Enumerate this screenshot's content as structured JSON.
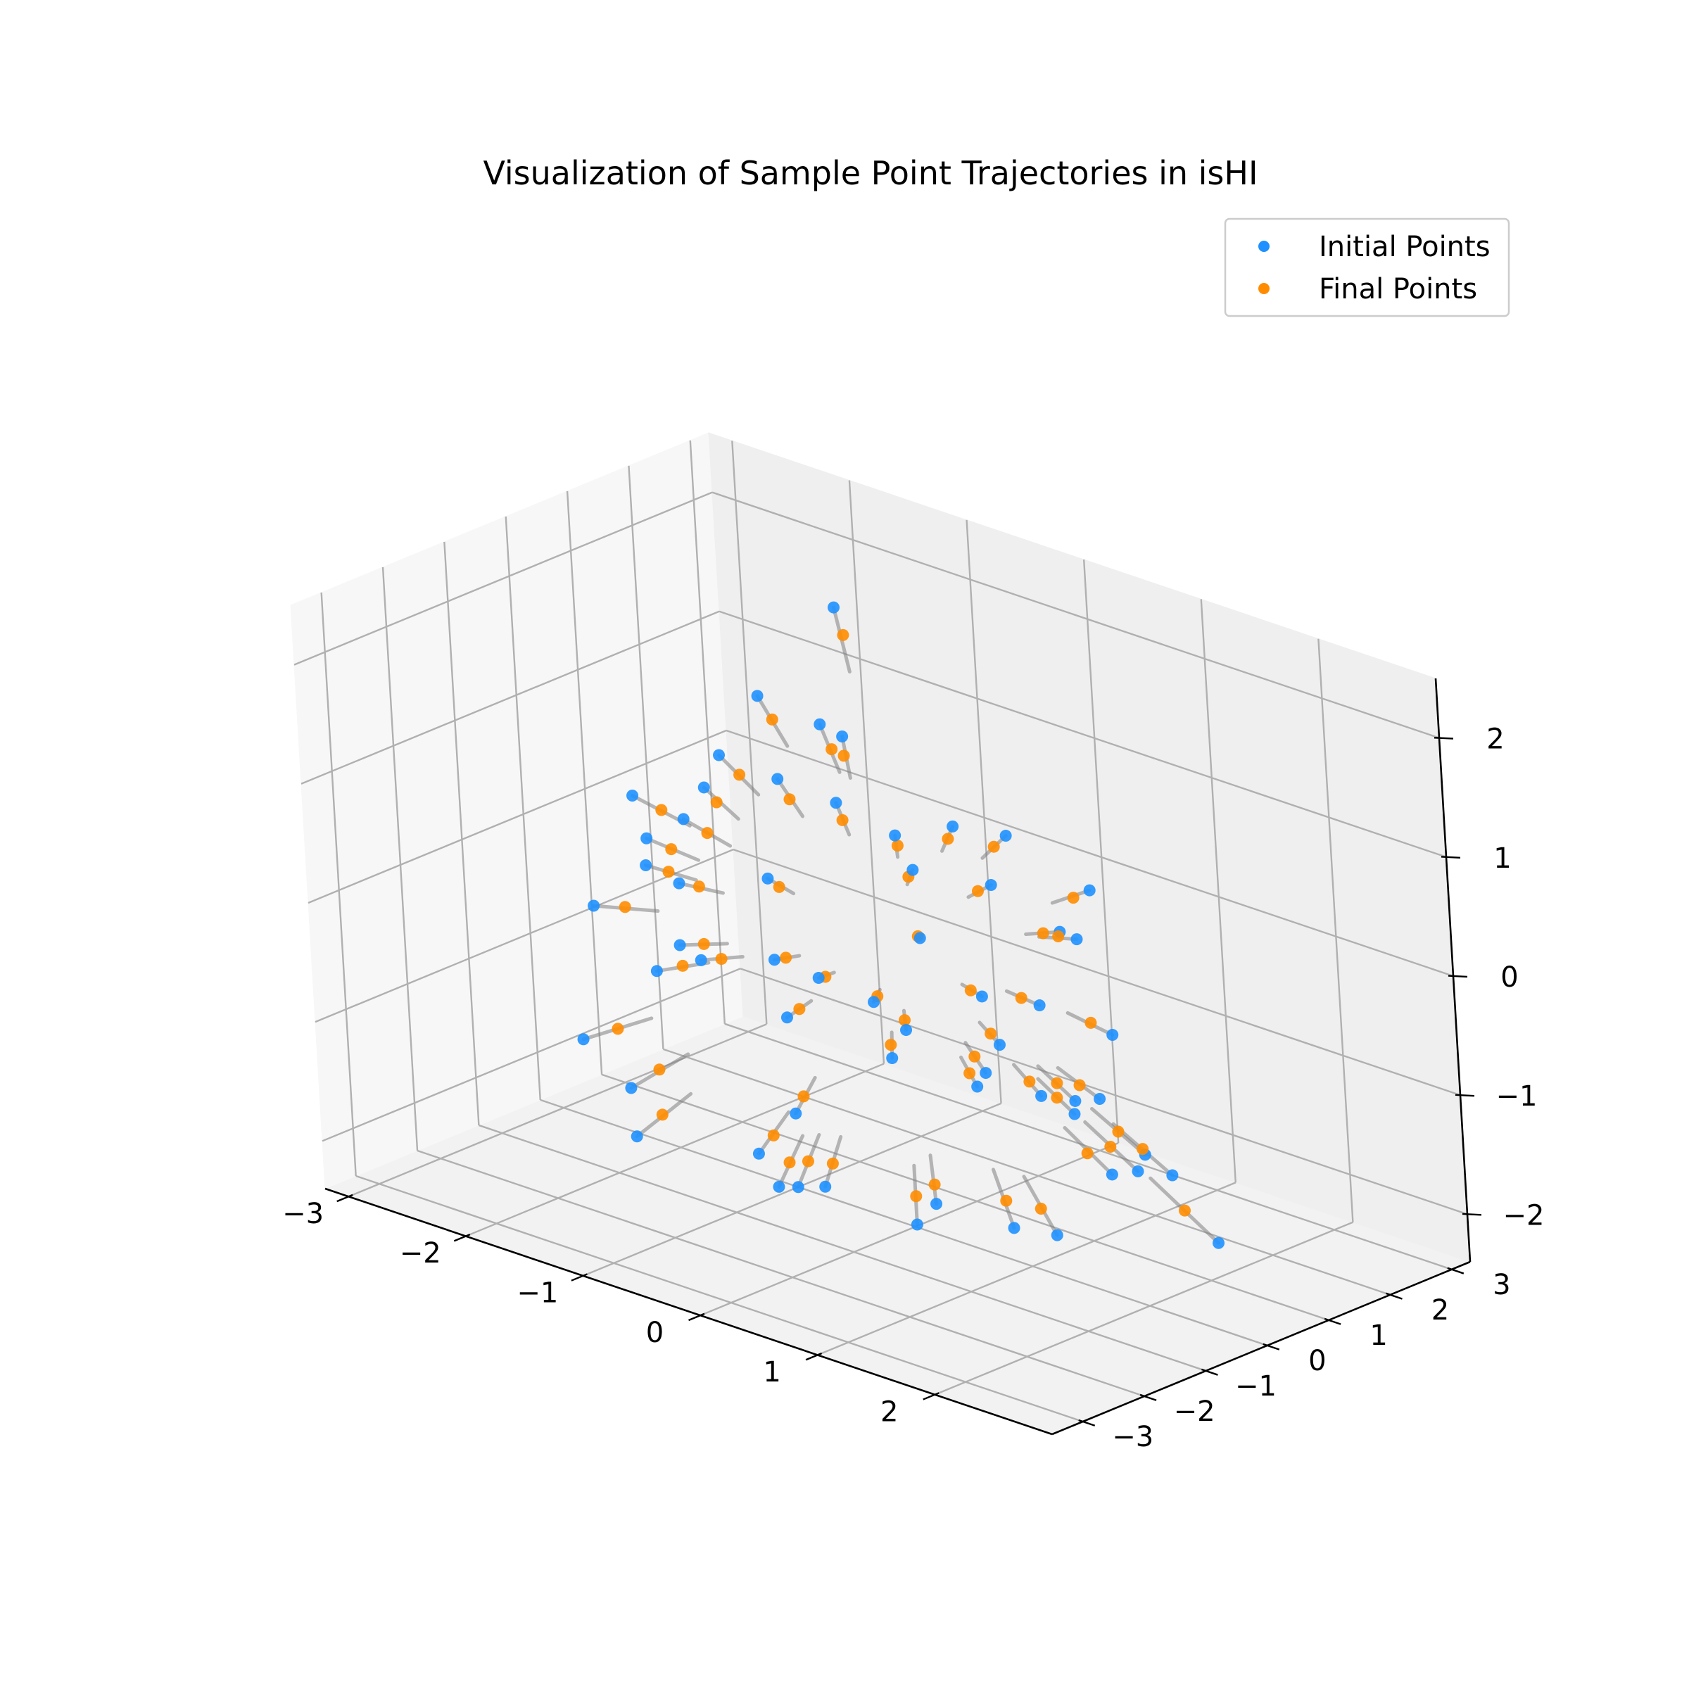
{
  "chart_data": {
    "type": "scatter3d",
    "title": "Visualization of Sample Point Trajectories in isHI",
    "xlabel": "",
    "ylabel": "",
    "zlabel": "",
    "xlim": [
      -3.2,
      3.0
    ],
    "ylim": [
      -3.5,
      3.3
    ],
    "zlim": [
      -2.4,
      2.5
    ],
    "x_ticks": [
      -3,
      -2,
      -1,
      0,
      1,
      2
    ],
    "y_ticks": [
      -3,
      -2,
      -1,
      0,
      1,
      2,
      3
    ],
    "z_ticks": [
      -2,
      -1,
      0,
      1,
      2
    ],
    "x_tick_labels": [
      "−3",
      "−2",
      "−1",
      "0",
      "1",
      "2"
    ],
    "y_tick_labels": [
      "−3",
      "−2",
      "−1",
      "0",
      "1",
      "2",
      "3"
    ],
    "z_tick_labels": [
      "−2",
      "−1",
      "0",
      "1",
      "2"
    ],
    "grid": true,
    "legend_position": "top-right",
    "colors": {
      "initial": "#1e90ff",
      "final": "#ff8c00",
      "trajectory": "#808080"
    },
    "series": [
      {
        "name": "Initial Points",
        "role": "initial",
        "color": "#1e90ff"
      },
      {
        "name": "Final Points",
        "role": "final",
        "color": "#ff8c00"
      }
    ],
    "trajectories": [
      {
        "initial": [
          -1.6,
          2.2,
          1.8
        ],
        "final": [
          -1.45,
          2.05,
          1.65
        ]
      },
      {
        "initial": [
          -0.3,
          -2.4,
          1.7
        ],
        "final": [
          -0.28,
          -2.25,
          1.55
        ]
      },
      {
        "initial": [
          0.6,
          -1.8,
          2.3
        ],
        "final": [
          0.55,
          -1.7,
          2.1
        ]
      },
      {
        "initial": [
          1.2,
          -1.9,
          1.4
        ],
        "final": [
          1.05,
          -1.7,
          1.25
        ]
      },
      {
        "initial": [
          1.6,
          -1.4,
          1.3
        ],
        "final": [
          1.4,
          -1.25,
          1.15
        ]
      },
      {
        "initial": [
          2.4,
          -1.3,
          1.5
        ],
        "final": [
          2.2,
          -1.2,
          1.35
        ]
      },
      {
        "initial": [
          1.9,
          -0.9,
          0.9
        ],
        "final": [
          1.7,
          -0.8,
          0.8
        ]
      },
      {
        "initial": [
          -2.2,
          2.0,
          0.9
        ],
        "final": [
          -2.0,
          1.85,
          0.8
        ]
      },
      {
        "initial": [
          -2.0,
          2.6,
          0.6
        ],
        "final": [
          -1.8,
          2.4,
          0.5
        ]
      },
      {
        "initial": [
          -2.4,
          1.7,
          0.4
        ],
        "final": [
          -2.15,
          1.55,
          0.35
        ]
      },
      {
        "initial": [
          -1.3,
          0.6,
          0.8
        ],
        "final": [
          -1.15,
          0.5,
          0.7
        ]
      },
      {
        "initial": [
          -0.2,
          -0.5,
          1.2
        ],
        "final": [
          -0.18,
          -0.45,
          1.05
        ]
      },
      {
        "initial": [
          -2.9,
          1.2,
          0.0
        ],
        "final": [
          -2.6,
          1.1,
          0.0
        ]
      },
      {
        "initial": [
          -2.6,
          0.8,
          -0.4
        ],
        "final": [
          -2.35,
          0.7,
          -0.35
        ]
      },
      {
        "initial": [
          -2.8,
          0.3,
          -0.7
        ],
        "final": [
          -2.5,
          0.25,
          -0.6
        ]
      },
      {
        "initial": [
          -2.1,
          0.4,
          -0.3
        ],
        "final": [
          -1.9,
          0.35,
          -0.25
        ]
      },
      {
        "initial": [
          -1.6,
          0.9,
          -0.2
        ],
        "final": [
          -1.45,
          0.8,
          -0.2
        ]
      },
      {
        "initial": [
          -1.2,
          0.2,
          -0.6
        ],
        "final": [
          -1.1,
          0.2,
          -0.55
        ]
      },
      {
        "initial": [
          -0.9,
          -0.2,
          -0.9
        ],
        "final": [
          -0.8,
          -0.18,
          -0.8
        ]
      },
      {
        "initial": [
          -2.3,
          -0.9,
          -1.4
        ],
        "final": [
          -2.05,
          -0.8,
          -1.25
        ]
      },
      {
        "initial": [
          -1.8,
          -1.1,
          -1.6
        ],
        "final": [
          -1.6,
          -1.0,
          -1.4
        ]
      },
      {
        "initial": [
          -1.5,
          -1.6,
          -1.8
        ],
        "final": [
          -1.35,
          -1.45,
          -1.6
        ]
      },
      {
        "initial": [
          -0.6,
          -0.7,
          -1.5
        ],
        "final": [
          -0.55,
          -0.65,
          -1.35
        ]
      },
      {
        "initial": [
          -0.4,
          -1.4,
          -1.9
        ],
        "final": [
          -0.35,
          -1.3,
          -1.7
        ]
      },
      {
        "initial": [
          0.1,
          -2.6,
          -1.2
        ],
        "final": [
          0.1,
          -2.35,
          -1.1
        ]
      },
      {
        "initial": [
          0.4,
          -0.7,
          -2.1
        ],
        "final": [
          0.35,
          -0.6,
          -1.9
        ]
      },
      {
        "initial": [
          -0.6,
          -0.3,
          -2.2
        ],
        "final": [
          -0.55,
          -0.25,
          -2.0
        ]
      },
      {
        "initial": [
          -1.0,
          0.0,
          -2.4
        ],
        "final": [
          -0.9,
          0.0,
          -2.15
        ]
      },
      {
        "initial": [
          0.9,
          0.6,
          -2.3
        ],
        "final": [
          0.8,
          0.55,
          -2.1
        ]
      },
      {
        "initial": [
          -0.3,
          0.9,
          -2.5
        ],
        "final": [
          -0.25,
          0.8,
          -2.3
        ]
      },
      {
        "initial": [
          0.2,
          1.2,
          -2.6
        ],
        "final": [
          0.2,
          1.1,
          -2.35
        ]
      },
      {
        "initial": [
          1.3,
          0.8,
          -1.7
        ],
        "final": [
          1.15,
          0.7,
          -1.55
        ]
      },
      {
        "initial": [
          1.8,
          0.3,
          -1.4
        ],
        "final": [
          1.6,
          0.25,
          -1.25
        ]
      },
      {
        "initial": [
          2.2,
          -0.3,
          -1.0
        ],
        "final": [
          1.95,
          -0.25,
          -0.9
        ]
      },
      {
        "initial": [
          2.7,
          -0.8,
          -0.9
        ],
        "final": [
          2.4,
          -0.7,
          -0.8
        ]
      },
      {
        "initial": [
          2.3,
          0.6,
          -1.9
        ],
        "final": [
          2.05,
          0.55,
          -1.7
        ]
      },
      {
        "initial": [
          2.6,
          -1.7,
          -0.1
        ],
        "final": [
          2.35,
          -1.55,
          -0.1
        ]
      },
      {
        "initial": [
          2.1,
          -1.2,
          -0.5
        ],
        "final": [
          1.9,
          -1.1,
          -0.45
        ]
      },
      {
        "initial": [
          1.6,
          -0.8,
          -0.6
        ],
        "final": [
          1.45,
          -0.7,
          -0.55
        ]
      },
      {
        "initial": [
          1.1,
          -0.5,
          -0.4
        ],
        "final": [
          1.0,
          -0.45,
          -0.35
        ]
      },
      {
        "initial": [
          0.8,
          -0.2,
          -0.8
        ],
        "final": [
          0.7,
          -0.18,
          -0.7
        ]
      },
      {
        "initial": [
          0.5,
          0.2,
          -1.1
        ],
        "final": [
          0.45,
          0.18,
          -1.0
        ]
      },
      {
        "initial": [
          1.4,
          0.1,
          -0.9
        ],
        "final": [
          1.25,
          0.1,
          -0.8
        ]
      },
      {
        "initial": [
          0.9,
          -1.3,
          0.6
        ],
        "final": [
          0.8,
          -1.15,
          0.55
        ]
      },
      {
        "initial": [
          1.3,
          -1.1,
          0.2
        ],
        "final": [
          1.15,
          -1.0,
          0.18
        ]
      },
      {
        "initial": [
          0.3,
          -1.0,
          -0.2
        ],
        "final": [
          0.28,
          -0.9,
          -0.18
        ]
      },
      {
        "initial": [
          -0.2,
          0.4,
          -0.9
        ],
        "final": [
          -0.18,
          0.35,
          -0.8
        ]
      },
      {
        "initial": [
          -0.5,
          0.7,
          -1.3
        ],
        "final": [
          -0.45,
          0.6,
          -1.15
        ]
      },
      {
        "initial": [
          0.7,
          0.9,
          -0.5
        ],
        "final": [
          0.6,
          0.8,
          -0.45
        ]
      },
      {
        "initial": [
          1.1,
          1.3,
          -0.7
        ],
        "final": [
          1.0,
          1.15,
          -0.6
        ]
      },
      {
        "initial": [
          -1.9,
          -0.4,
          -0.8
        ],
        "final": [
          -1.7,
          -0.35,
          -0.7
        ]
      },
      {
        "initial": [
          -1.4,
          -0.6,
          -0.5
        ],
        "final": [
          -1.25,
          -0.55,
          -0.45
        ]
      },
      {
        "initial": [
          -0.8,
          1.5,
          0.3
        ],
        "final": [
          -0.7,
          1.35,
          0.28
        ]
      },
      {
        "initial": [
          0.0,
          1.8,
          0.5
        ],
        "final": [
          0.0,
          1.6,
          0.45
        ]
      },
      {
        "initial": [
          0.4,
          2.1,
          -0.3
        ],
        "final": [
          0.35,
          1.9,
          -0.25
        ]
      },
      {
        "initial": [
          -1.1,
          -1.9,
          0.9
        ],
        "final": [
          -1.0,
          -1.7,
          0.8
        ]
      },
      {
        "initial": [
          -0.7,
          -2.2,
          0.2
        ],
        "final": [
          -0.6,
          -2.0,
          0.2
        ]
      },
      {
        "initial": [
          0.6,
          -2.4,
          0.4
        ],
        "final": [
          0.55,
          -2.2,
          0.35
        ]
      },
      {
        "initial": [
          -1.7,
          -0.2,
          0.5
        ],
        "final": [
          -1.5,
          -0.2,
          0.45
        ]
      },
      {
        "initial": [
          0.2,
          0.6,
          0.9
        ],
        "final": [
          0.18,
          0.55,
          0.8
        ]
      }
    ]
  }
}
